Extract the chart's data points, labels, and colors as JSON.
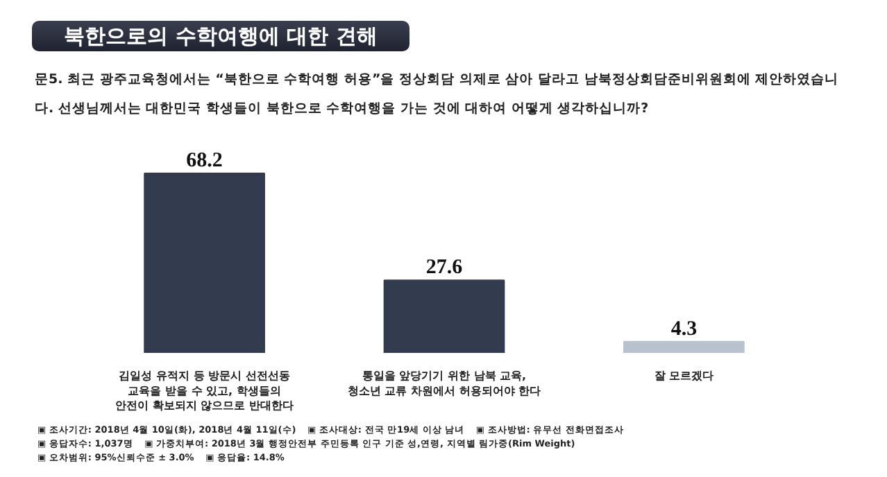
{
  "chart_data": {
    "type": "bar",
    "title": "북한으로의 수학여행에 대한 견해",
    "subtitle": "문5. 최근 광주교육청에서는 “북한으로 수학여행 허용”을 정상회담 의제로 삼아 달라고 남북정상회담준비위원회에 제안하였습니다. 선생님께서는 대한민국 학생들이 북한으로 수학여행을 가는 것에 대하여 어떻게 생각하십니까?",
    "categories": [
      "김일성 유적지 등 방문시 선전선동 교육을 받을 수 있고, 학생들의 안전이 확보되지 않으므로 반대한다",
      "통일을 앞당기기 위한 남북 교육, 청소년 교류 차원에서 허용되어야 한다",
      "잘 모르겠다"
    ],
    "values": [
      68.2,
      27.6,
      4.3
    ],
    "colors": [
      "#333c4e",
      "#333c4e",
      "#b8c2ce"
    ],
    "data_labels": true,
    "grid": false,
    "annotations": [
      "▣ 조사기간: 2018년 4월 10일(화), 2018년 4월 11일(수)",
      "▣ 조사대상: 전국 만19세 이상 남녀",
      "▣ 조사방법: 유무선 전화면접조사",
      "▣ 응답자수: 1,037명",
      "▣ 가중치부여: 2018년 3월 행정안전부 주민등록 인구 기준 성,연령, 지역별 림가중(Rim Weight)",
      "▣ 오차범위: 95%신뢰수준 ± 3.0%",
      "▣ 응답율: 14.8%"
    ]
  }
}
